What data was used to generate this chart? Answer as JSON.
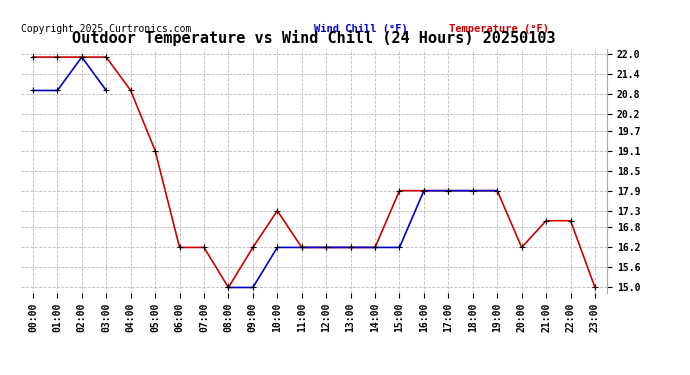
{
  "title": "Outdoor Temperature vs Wind Chill (24 Hours) 20250103",
  "copyright": "Copyright 2025 Curtronics.com",
  "legend_wind": "Wind Chill (°F)",
  "legend_temp": "Temperature (°F)",
  "hours": [
    0,
    1,
    2,
    3,
    4,
    5,
    6,
    7,
    8,
    9,
    10,
    11,
    12,
    13,
    14,
    15,
    16,
    17,
    18,
    19,
    20,
    21,
    22,
    23
  ],
  "temperature": [
    21.9,
    21.9,
    21.9,
    21.9,
    20.9,
    19.1,
    16.2,
    16.2,
    15.0,
    16.2,
    17.3,
    16.2,
    16.2,
    16.2,
    16.2,
    17.9,
    17.9,
    17.9,
    17.9,
    17.9,
    16.2,
    17.0,
    17.0,
    15.0
  ],
  "wind_chill": [
    20.9,
    20.9,
    21.9,
    20.9,
    null,
    null,
    null,
    null,
    15.0,
    15.0,
    16.2,
    16.2,
    16.2,
    16.2,
    16.2,
    16.2,
    17.9,
    17.9,
    17.9,
    17.9,
    null,
    null,
    null,
    null
  ],
  "yticks": [
    15.0,
    15.6,
    16.2,
    16.8,
    17.3,
    17.9,
    18.5,
    19.1,
    19.7,
    20.2,
    20.8,
    21.4,
    22.0
  ],
  "ylim": [
    14.85,
    22.15
  ],
  "temp_color": "#cc0000",
  "wind_color": "#0000cc",
  "marker_color": "#000000",
  "bg_color": "#ffffff",
  "grid_color": "#bbbbbb",
  "title_fontsize": 11,
  "label_fontsize": 7.5,
  "tick_fontsize": 7,
  "copyright_fontsize": 7
}
